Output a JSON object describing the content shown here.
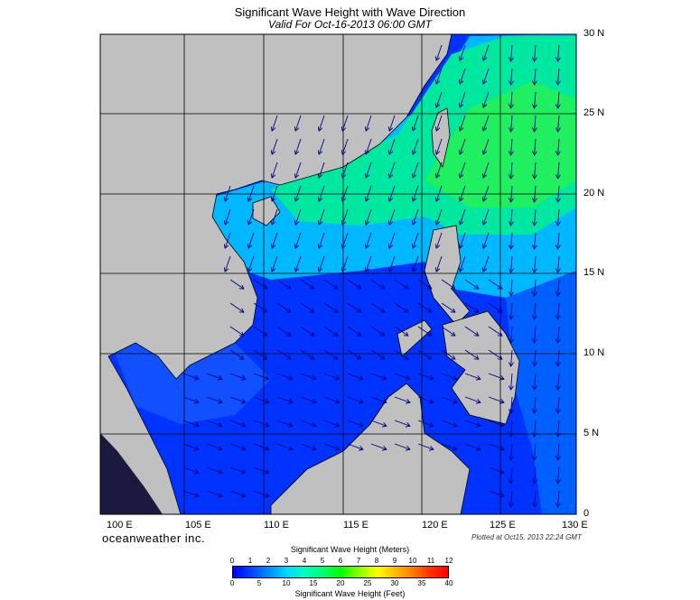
{
  "header": {
    "title": "Significant Wave Height with Wave Direction",
    "subtitle": "Valid For Oct-16-2013 06:00 GMT"
  },
  "map": {
    "lat_labels": [
      "30 N",
      "25 N",
      "20 N",
      "15 N",
      "10 N",
      "5 N",
      "0"
    ],
    "lon_labels": [
      "100 E",
      "105 E",
      "110 E",
      "115 E",
      "120 E",
      "125 E",
      "130 E"
    ],
    "land_color": "#c0c0c0",
    "grid_color": "#000000",
    "arrow_color": "#000080"
  },
  "footer": {
    "brand": "oceanweather inc.",
    "plotted": "Plotted at Oct15, 2013 22:24 GMT"
  },
  "colorbar": {
    "title_meters": "Significant Wave Height (Meters)",
    "title_feet": "Significant Wave Height (Feet)",
    "meters_ticks": [
      "0",
      "1",
      "2",
      "3",
      "4",
      "5",
      "6",
      "7",
      "8",
      "9",
      "10",
      "11",
      "12"
    ],
    "feet_ticks": [
      "0",
      "5",
      "10",
      "15",
      "20",
      "25",
      "30",
      "35",
      "40"
    ]
  }
}
